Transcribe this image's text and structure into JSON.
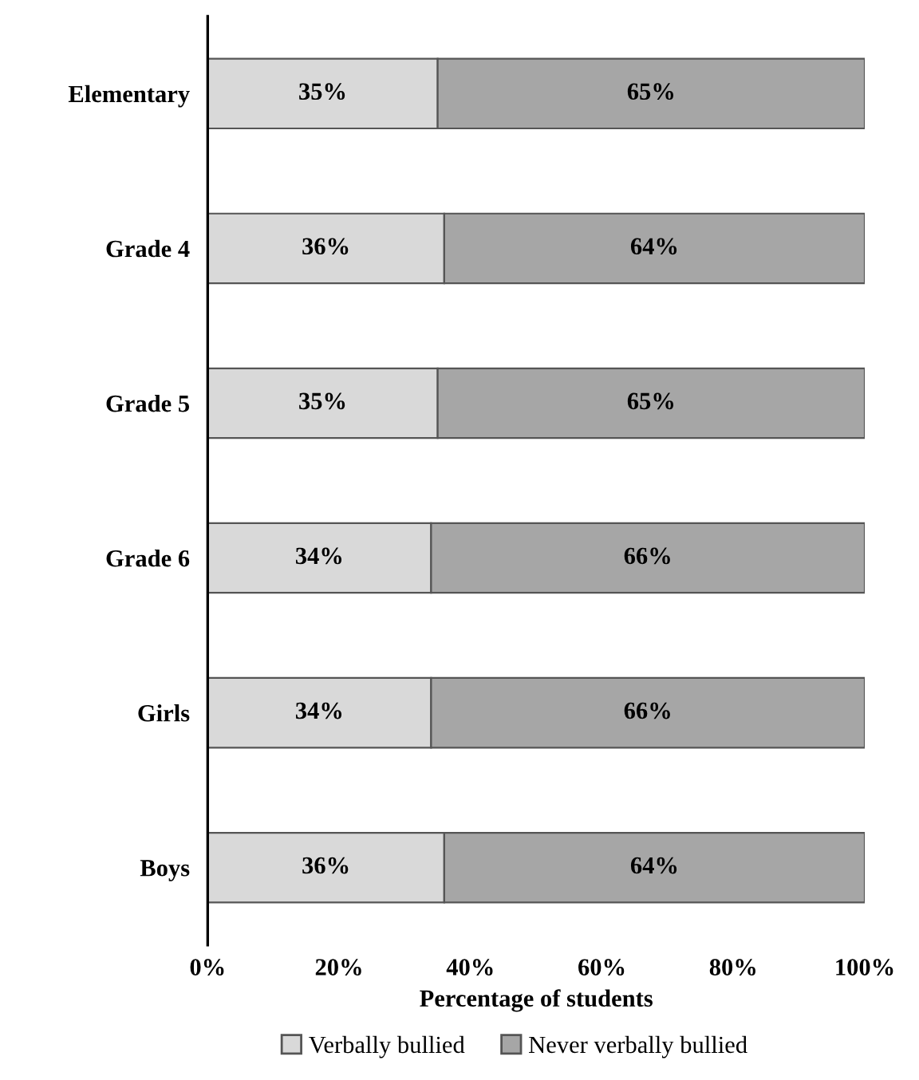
{
  "chart_data": {
    "type": "bar",
    "orientation": "horizontal",
    "stacked": true,
    "xlabel": "Percentage of students",
    "categories": [
      "Elementary",
      "Grade 4",
      "Grade 5",
      "Grade 6",
      "Girls",
      "Boys"
    ],
    "series": [
      {
        "name": "Verbally bullied",
        "color": "#d9d9d9",
        "values": [
          35,
          36,
          35,
          34,
          34,
          36
        ],
        "value_labels": [
          "35%",
          "36%",
          "35%",
          "34%",
          "34%",
          "36%"
        ]
      },
      {
        "name": "Never verbally bullied",
        "color": "#a6a6a6",
        "values": [
          65,
          64,
          65,
          66,
          66,
          64
        ],
        "value_labels": [
          "65%",
          "64%",
          "65%",
          "66%",
          "66%",
          "64%"
        ]
      }
    ],
    "xlim": [
      0,
      100
    ],
    "xticks": [
      {
        "value": 0,
        "label": "0%"
      },
      {
        "value": 20,
        "label": "20%"
      },
      {
        "value": 40,
        "label": "40%"
      },
      {
        "value": 60,
        "label": "60%"
      },
      {
        "value": 80,
        "label": "80%"
      },
      {
        "value": 100,
        "label": "100%"
      }
    ],
    "grid": false,
    "legend": "bottom"
  }
}
